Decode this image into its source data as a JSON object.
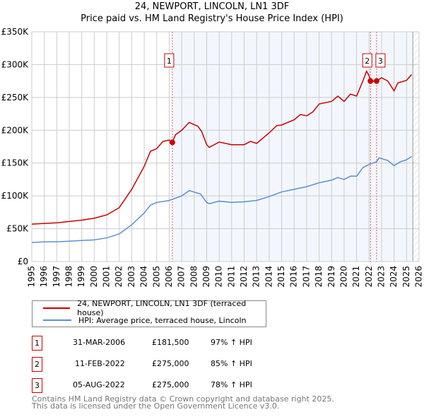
{
  "title": "24, NEWPORT, LINCOLN, LN1 3DF",
  "subtitle": "Price paid vs. HM Land Registry's House Price Index (HPI)",
  "chart_data": {
    "type": "line",
    "xlim": [
      1995,
      2026
    ],
    "ylim": [
      0,
      350000
    ],
    "yticks": [
      {
        "v": 0,
        "label": "£0"
      },
      {
        "v": 50000,
        "label": "£50K"
      },
      {
        "v": 100000,
        "label": "£100K"
      },
      {
        "v": 150000,
        "label": "£150K"
      },
      {
        "v": 200000,
        "label": "£200K"
      },
      {
        "v": 250000,
        "label": "£250K"
      },
      {
        "v": 300000,
        "label": "£300K"
      },
      {
        "v": 350000,
        "label": "£350K"
      }
    ],
    "xticks": [
      "1995",
      "1996",
      "1997",
      "1998",
      "1999",
      "2000",
      "2001",
      "2002",
      "2003",
      "2004",
      "2005",
      "2006",
      "2007",
      "2008",
      "2009",
      "2010",
      "2011",
      "2012",
      "2013",
      "2014",
      "2015",
      "2016",
      "2017",
      "2018",
      "2019",
      "2020",
      "2021",
      "2022",
      "2023",
      "2024",
      "2025",
      "2026"
    ],
    "shade_from": 2006.25,
    "hatch_from": 2025.5,
    "series": [
      {
        "name": "24, NEWPORT, LINCOLN, LN1 3DF (terraced house)",
        "color": "#cc0000",
        "x": [
          1995,
          1996,
          1997,
          1998,
          1999,
          2000,
          2001,
          2002,
          2003,
          2004,
          2004.5,
          2005,
          2005.5,
          2006,
          2006.25,
          2006.5,
          2007,
          2007.6,
          2008.3,
          2008.6,
          2009,
          2009.2,
          2010,
          2011,
          2012,
          2012.5,
          2013,
          2013.5,
          2014,
          2014.6,
          2015,
          2016,
          2016.5,
          2017,
          2017.5,
          2018,
          2019,
          2019.5,
          2020,
          2020.5,
          2021,
          2021.5,
          2021.8,
          2022,
          2022.1,
          2022.6,
          2023,
          2023.5,
          2024,
          2024.3,
          2025,
          2025.4
        ],
        "y": [
          57000,
          58000,
          59000,
          61000,
          63000,
          66000,
          71000,
          82000,
          110000,
          145000,
          168000,
          172000,
          183000,
          185000,
          181500,
          193000,
          200000,
          212000,
          206000,
          198000,
          178000,
          174000,
          182000,
          178000,
          178000,
          183000,
          180000,
          188000,
          196000,
          207000,
          208000,
          216000,
          224000,
          222000,
          228000,
          240000,
          244000,
          252000,
          244000,
          255000,
          252000,
          275000,
          290000,
          283000,
          275000,
          275000,
          280000,
          275000,
          260000,
          272000,
          276000,
          285000
        ]
      },
      {
        "name": "HPI: Average price, terraced house, Lincoln",
        "color": "#5b8fd4",
        "x": [
          1995,
          1996,
          1997,
          1998,
          1999,
          2000,
          2001,
          2002,
          2003,
          2004,
          2004.5,
          2005,
          2006,
          2007,
          2007.6,
          2008.5,
          2009,
          2009.2,
          2010,
          2011,
          2012,
          2013,
          2014,
          2015,
          2016,
          2017,
          2018,
          2019,
          2019.5,
          2020,
          2020.5,
          2021,
          2021.5,
          2022,
          2022.6,
          2022.8,
          2023.5,
          2024,
          2024.5,
          2025,
          2025.4
        ],
        "y": [
          29000,
          30000,
          30000,
          31000,
          32000,
          33000,
          36000,
          42000,
          56000,
          74000,
          86000,
          90000,
          93000,
          100000,
          108000,
          103000,
          90000,
          88000,
          92000,
          90000,
          91000,
          93000,
          99000,
          106000,
          110000,
          114000,
          120000,
          124000,
          128000,
          125000,
          130000,
          130000,
          143000,
          148000,
          152000,
          158000,
          154000,
          146000,
          152000,
          155000,
          160000
        ]
      }
    ],
    "sales": [
      {
        "n": "1",
        "x": 2006.25,
        "y": 181500
      },
      {
        "n": "2",
        "x": 2022.11,
        "y": 275000
      },
      {
        "n": "3",
        "x": 2022.6,
        "y": 275000
      }
    ]
  },
  "legend": [
    "24, NEWPORT, LINCOLN, LN1 3DF (terraced house)",
    "HPI: Average price, terraced house, Lincoln"
  ],
  "table": [
    {
      "n": "1",
      "date": "31-MAR-2006",
      "price": "£181,500",
      "hpi": "97% ↑ HPI"
    },
    {
      "n": "2",
      "date": "11-FEB-2022",
      "price": "£275,000",
      "hpi": "85% ↑ HPI"
    },
    {
      "n": "3",
      "date": "05-AUG-2022",
      "price": "£275,000",
      "hpi": "78% ↑ HPI"
    }
  ],
  "footer": [
    "Contains HM Land Registry data © Crown copyright and database right 2025.",
    "This data is licensed under the Open Government Licence v3.0."
  ]
}
